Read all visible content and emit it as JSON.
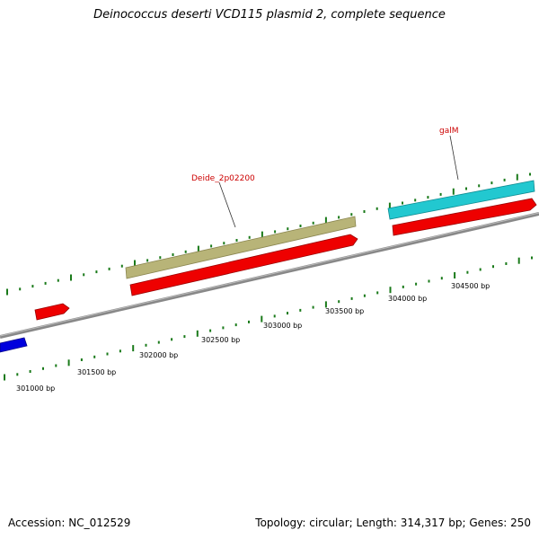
{
  "title": "Deinococcus deserti VCD115 plasmid 2, complete sequence",
  "footer": {
    "accession": "Accession: NC_012529",
    "summary": "Topology: circular; Length: 314,317 bp; Genes: 250"
  },
  "scale_labels": [
    "301000 bp",
    "301500 bp",
    "302000 bp",
    "302500 bp",
    "303000 bp",
    "303500 bp",
    "304000 bp",
    "304500 bp"
  ],
  "gene_labels": [
    "Deide_2p02200",
    "galM"
  ],
  "colors": {
    "backbone": "#808080",
    "tick": "#1a7a1a",
    "forward_gene": "#ee0000",
    "reverse_gene": "#0000dd",
    "feature_olive": "#b8b478",
    "feature_cyan": "#22c8d0",
    "label_red": "#cc0000"
  }
}
